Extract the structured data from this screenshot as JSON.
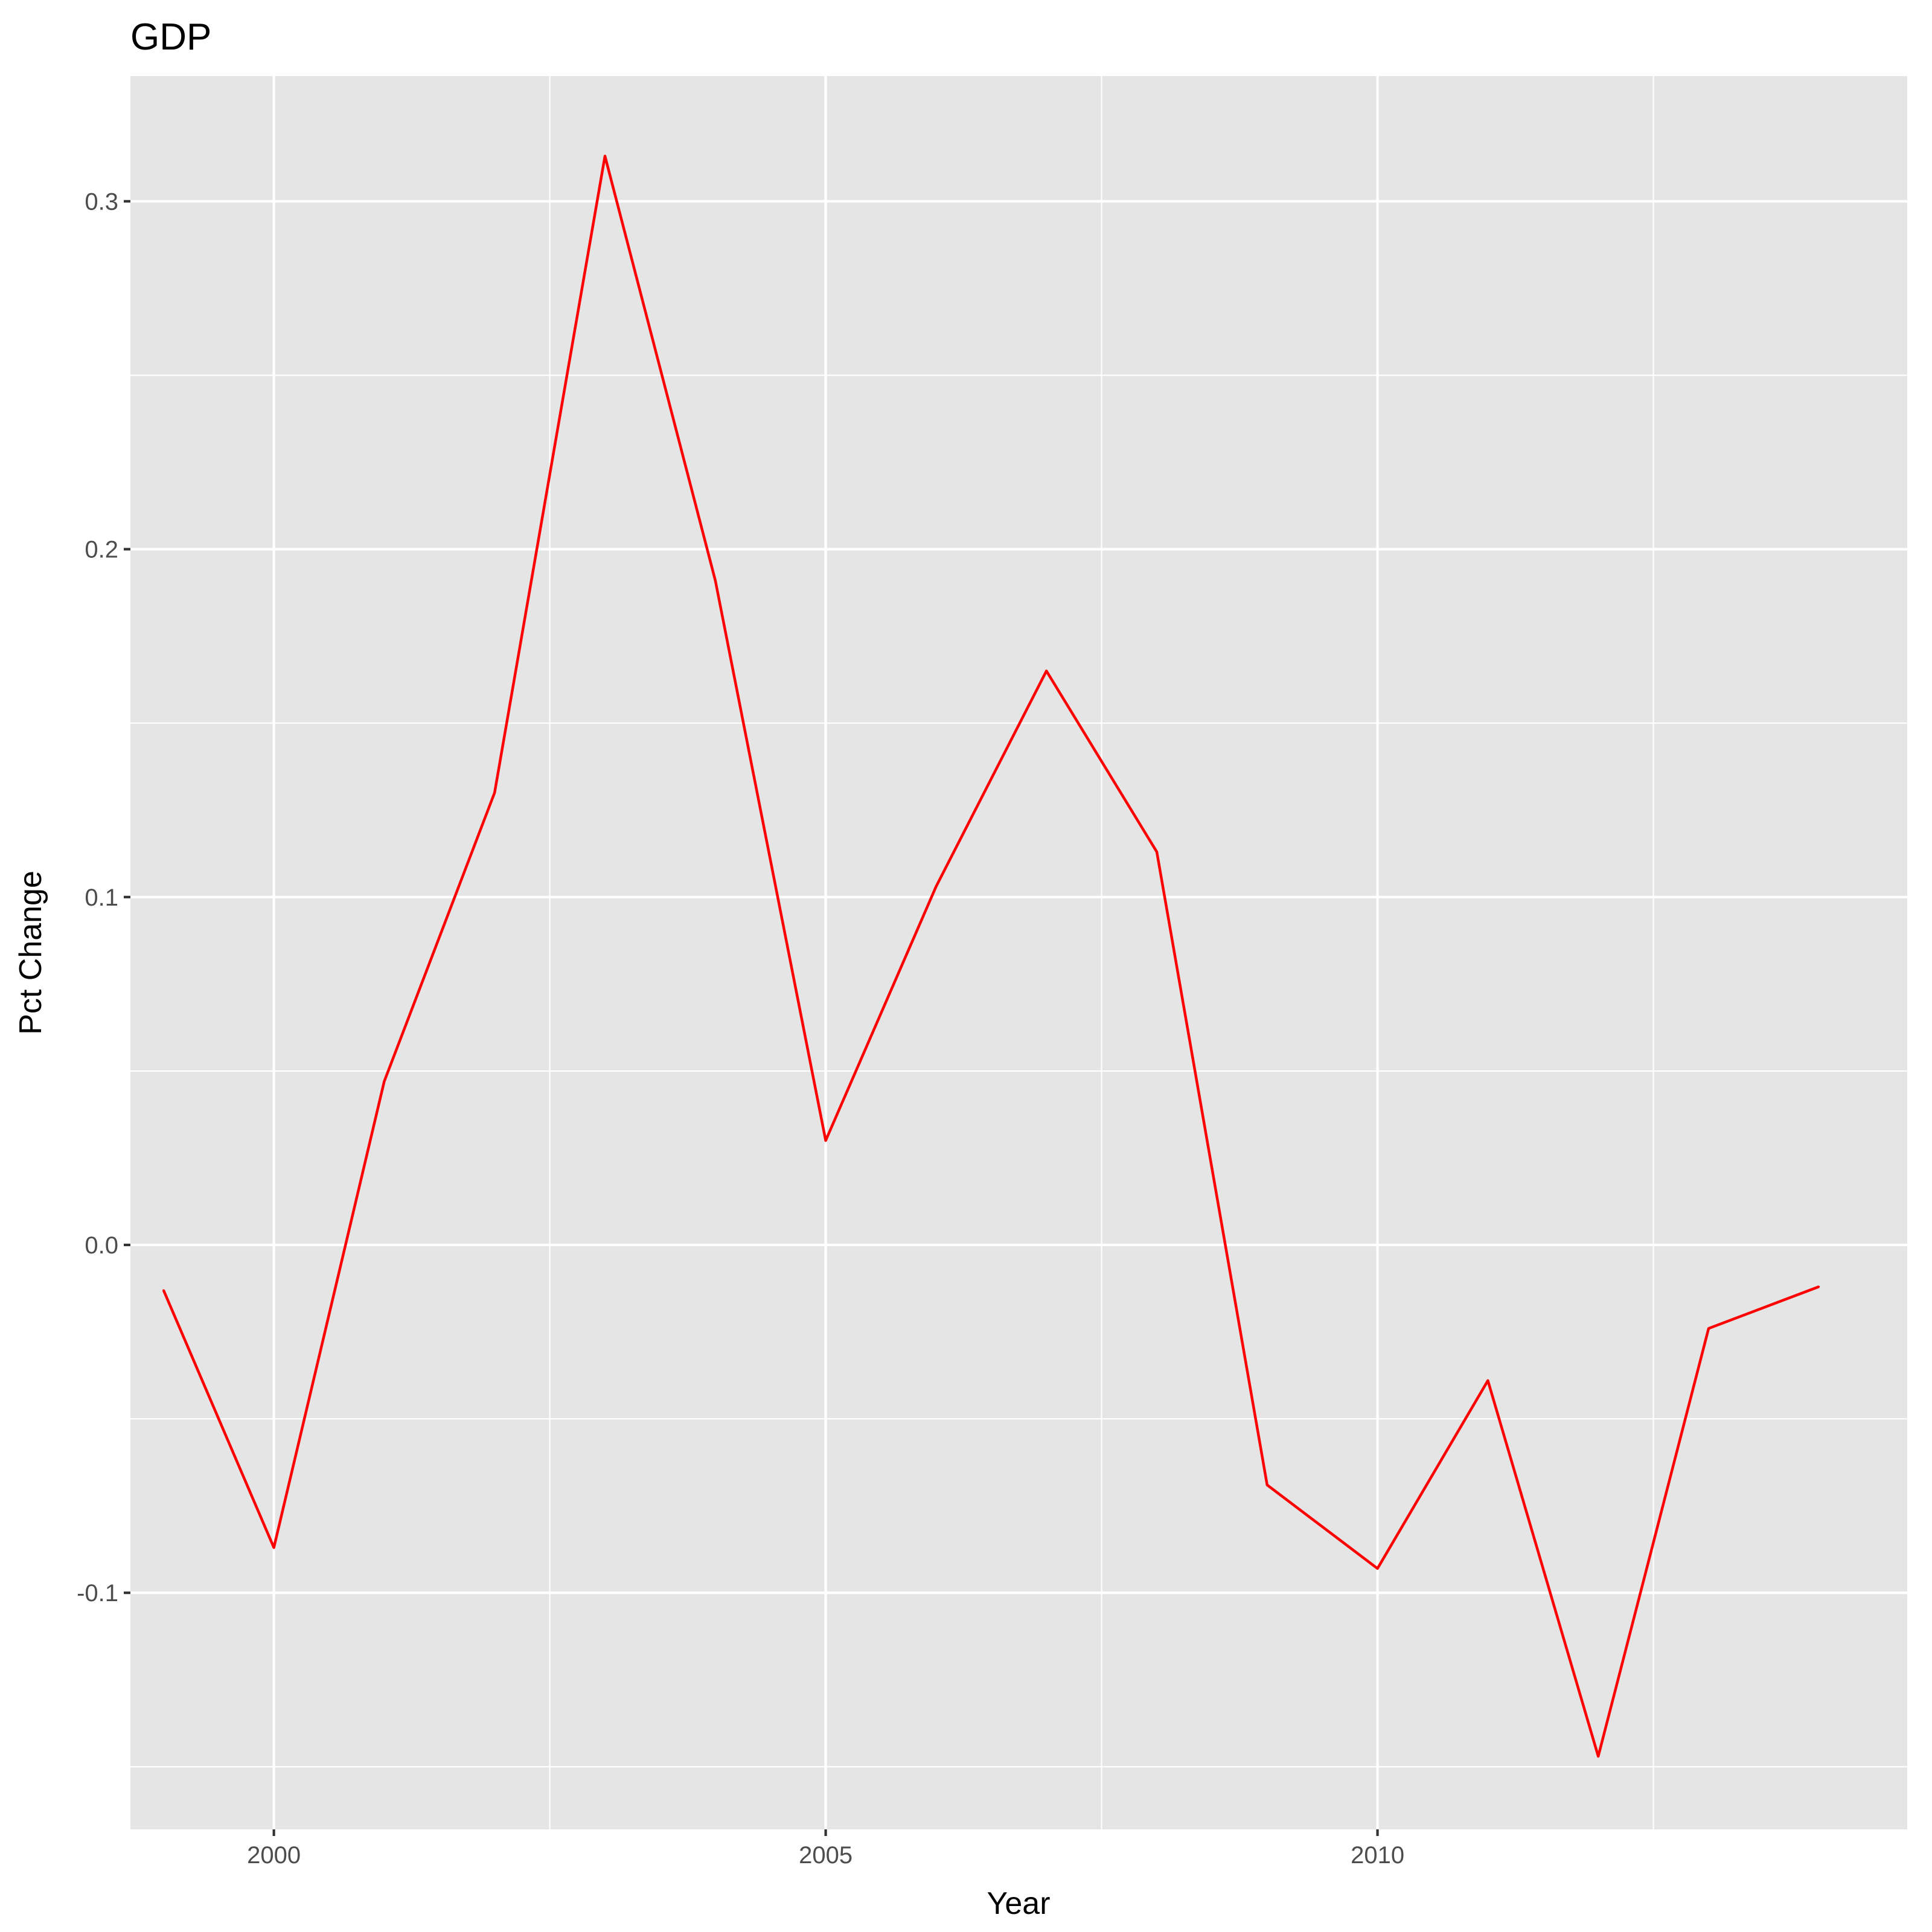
{
  "chart_data": {
    "type": "line",
    "title": "GDP",
    "xlabel": "Year",
    "ylabel": "Pct Change",
    "xlim": [
      1998.7,
      2014.8
    ],
    "ylim": [
      -0.168,
      0.336
    ],
    "x_ticks": [
      2000,
      2005,
      2010
    ],
    "x_tick_labels": [
      "2000",
      "2005",
      "2010"
    ],
    "x_minor_ticks": [
      2002.5,
      2007.5,
      2012.5
    ],
    "y_ticks": [
      -0.1,
      0.0,
      0.1,
      0.2,
      0.3
    ],
    "y_tick_labels": [
      "-0.1",
      "0.0",
      "0.1",
      "0.2",
      "0.3"
    ],
    "y_minor_ticks": [
      -0.15,
      -0.05,
      0.05,
      0.15,
      0.25
    ],
    "grid": true,
    "legend": "none",
    "background": "#e5e5e5",
    "line_color": "#ff0000",
    "series": [
      {
        "x": [
          1999,
          2000,
          2001,
          2002,
          2003,
          2004,
          2005,
          2006,
          2007,
          2008,
          2009,
          2010,
          2011,
          2012,
          2013,
          2014
        ],
        "values": [
          -0.013,
          -0.087,
          0.047,
          0.13,
          0.313,
          0.191,
          0.03,
          0.103,
          0.165,
          0.113,
          -0.069,
          -0.093,
          -0.039,
          -0.147,
          -0.024,
          -0.012
        ]
      }
    ]
  }
}
